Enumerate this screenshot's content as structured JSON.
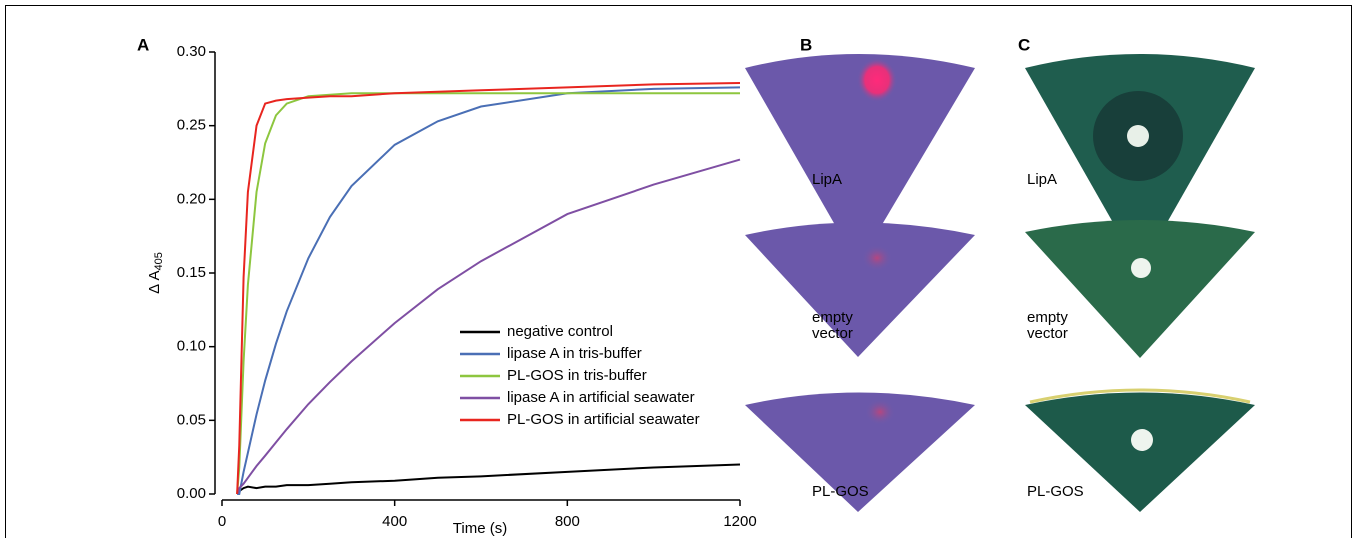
{
  "chart_data": {
    "type": "line",
    "panel_label": "A",
    "xlabel": "Time (s)",
    "ylabel": "Δ A",
    "ylabel_subscript": "405",
    "x": [
      35,
      40,
      50,
      60,
      80,
      100,
      125,
      150,
      200,
      250,
      300,
      400,
      500,
      600,
      800,
      1000,
      1200
    ],
    "series": [
      {
        "name": "negative control",
        "color": "#000000",
        "values": [
          0,
          0.002,
          0.004,
          0.005,
          0.004,
          0.005,
          0.005,
          0.006,
          0.006,
          0.007,
          0.008,
          0.009,
          0.011,
          0.012,
          0.015,
          0.018,
          0.02
        ]
      },
      {
        "name": "lipase A in tris-buffer",
        "color": "#4a6fb5",
        "values": [
          0,
          0,
          0.015,
          0.028,
          0.054,
          0.077,
          0.102,
          0.124,
          0.16,
          0.188,
          0.209,
          0.237,
          0.253,
          0.263,
          0.272,
          0.275,
          0.276
        ]
      },
      {
        "name": "PL-GOS in tris-buffer",
        "color": "#8dc63f",
        "values": [
          0,
          0.018,
          0.09,
          0.142,
          0.205,
          0.238,
          0.257,
          0.265,
          0.27,
          0.271,
          0.272,
          0.272,
          0.272,
          0.272,
          0.272,
          0.272,
          0.272
        ]
      },
      {
        "name": "lipase A in artificial seawater",
        "color": "#7f4fa3",
        "values": [
          0,
          0.004,
          0.007,
          0.011,
          0.019,
          0.026,
          0.035,
          0.044,
          0.061,
          0.076,
          0.09,
          0.116,
          0.139,
          0.158,
          0.19,
          0.21,
          0.227
        ]
      },
      {
        "name": "PL-GOS in artificial seawater",
        "color": "#e8251f",
        "values": [
          0,
          0.033,
          0.147,
          0.205,
          0.25,
          0.265,
          0.267,
          0.268,
          0.269,
          0.27,
          0.27,
          0.272,
          0.273,
          0.274,
          0.276,
          0.278,
          0.279
        ]
      }
    ],
    "xlim": [
      0,
      1200
    ],
    "xticks": [
      0,
      400,
      800,
      1200
    ],
    "ylim": [
      0,
      0.3
    ],
    "yticks": [
      {
        "value": 0,
        "label": "0.00"
      },
      {
        "value": 0.05,
        "label": "0.05"
      },
      {
        "value": 0.1,
        "label": "0.10"
      },
      {
        "value": 0.15,
        "label": "0.15"
      },
      {
        "value": 0.2,
        "label": "0.20"
      },
      {
        "value": 0.25,
        "label": "0.25"
      },
      {
        "value": 0.3,
        "label": "0.30"
      }
    ],
    "grid": false,
    "legend": "lower right"
  },
  "panels": [
    {
      "label": "B",
      "samples": [
        [
          "LipA"
        ],
        [
          "empty",
          "vector"
        ],
        [
          "PL-GOS"
        ]
      ]
    },
    {
      "label": "C",
      "samples": [
        [
          "LipA"
        ],
        [
          "empty",
          "vector"
        ],
        [
          "PL-GOS"
        ]
      ]
    }
  ]
}
